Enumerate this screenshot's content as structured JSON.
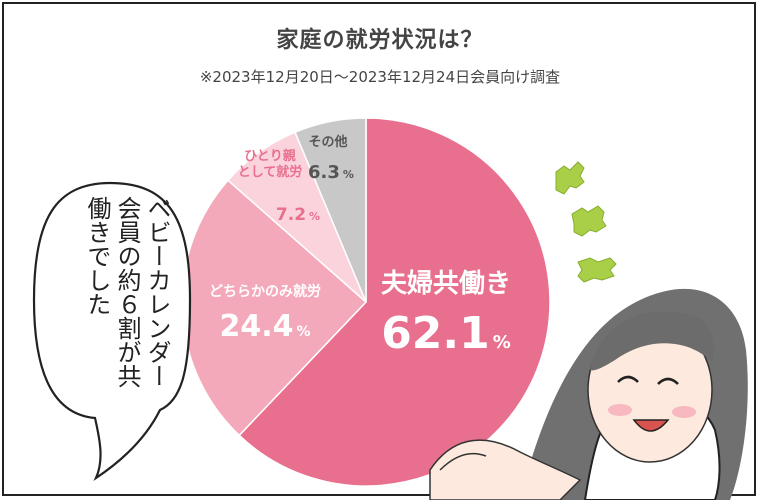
{
  "title": "家庭の就労状況は？",
  "subtitle": "※2023年12月20日〜2023年12月24日会員向け調査",
  "speech_bubble": "ベビーカレンダー会員の約６割が共働きでした",
  "chart_data": {
    "type": "pie",
    "start": "12 o'clock",
    "direction": "clockwise",
    "slices": [
      {
        "label": "夫婦共働き",
        "value": 62.1,
        "value_text": "62.1",
        "unit": "%",
        "color": "#e8708e",
        "text_color": "#ffffff"
      },
      {
        "label": "どちらかのみ就労",
        "value": 24.4,
        "value_text": "24.4",
        "unit": "%",
        "color": "#f4a9bb",
        "text_color": "#ffffff"
      },
      {
        "label": "ひとり親\nとして就労",
        "value": 7.2,
        "value_text": "7.2",
        "unit": "%",
        "color": "#fbd3dd",
        "text_color": "#e8708e"
      },
      {
        "label": "その他",
        "value": 6.3,
        "value_text": "6.3",
        "unit": "%",
        "color": "#c8c8c8",
        "text_color": "#555555"
      }
    ]
  }
}
